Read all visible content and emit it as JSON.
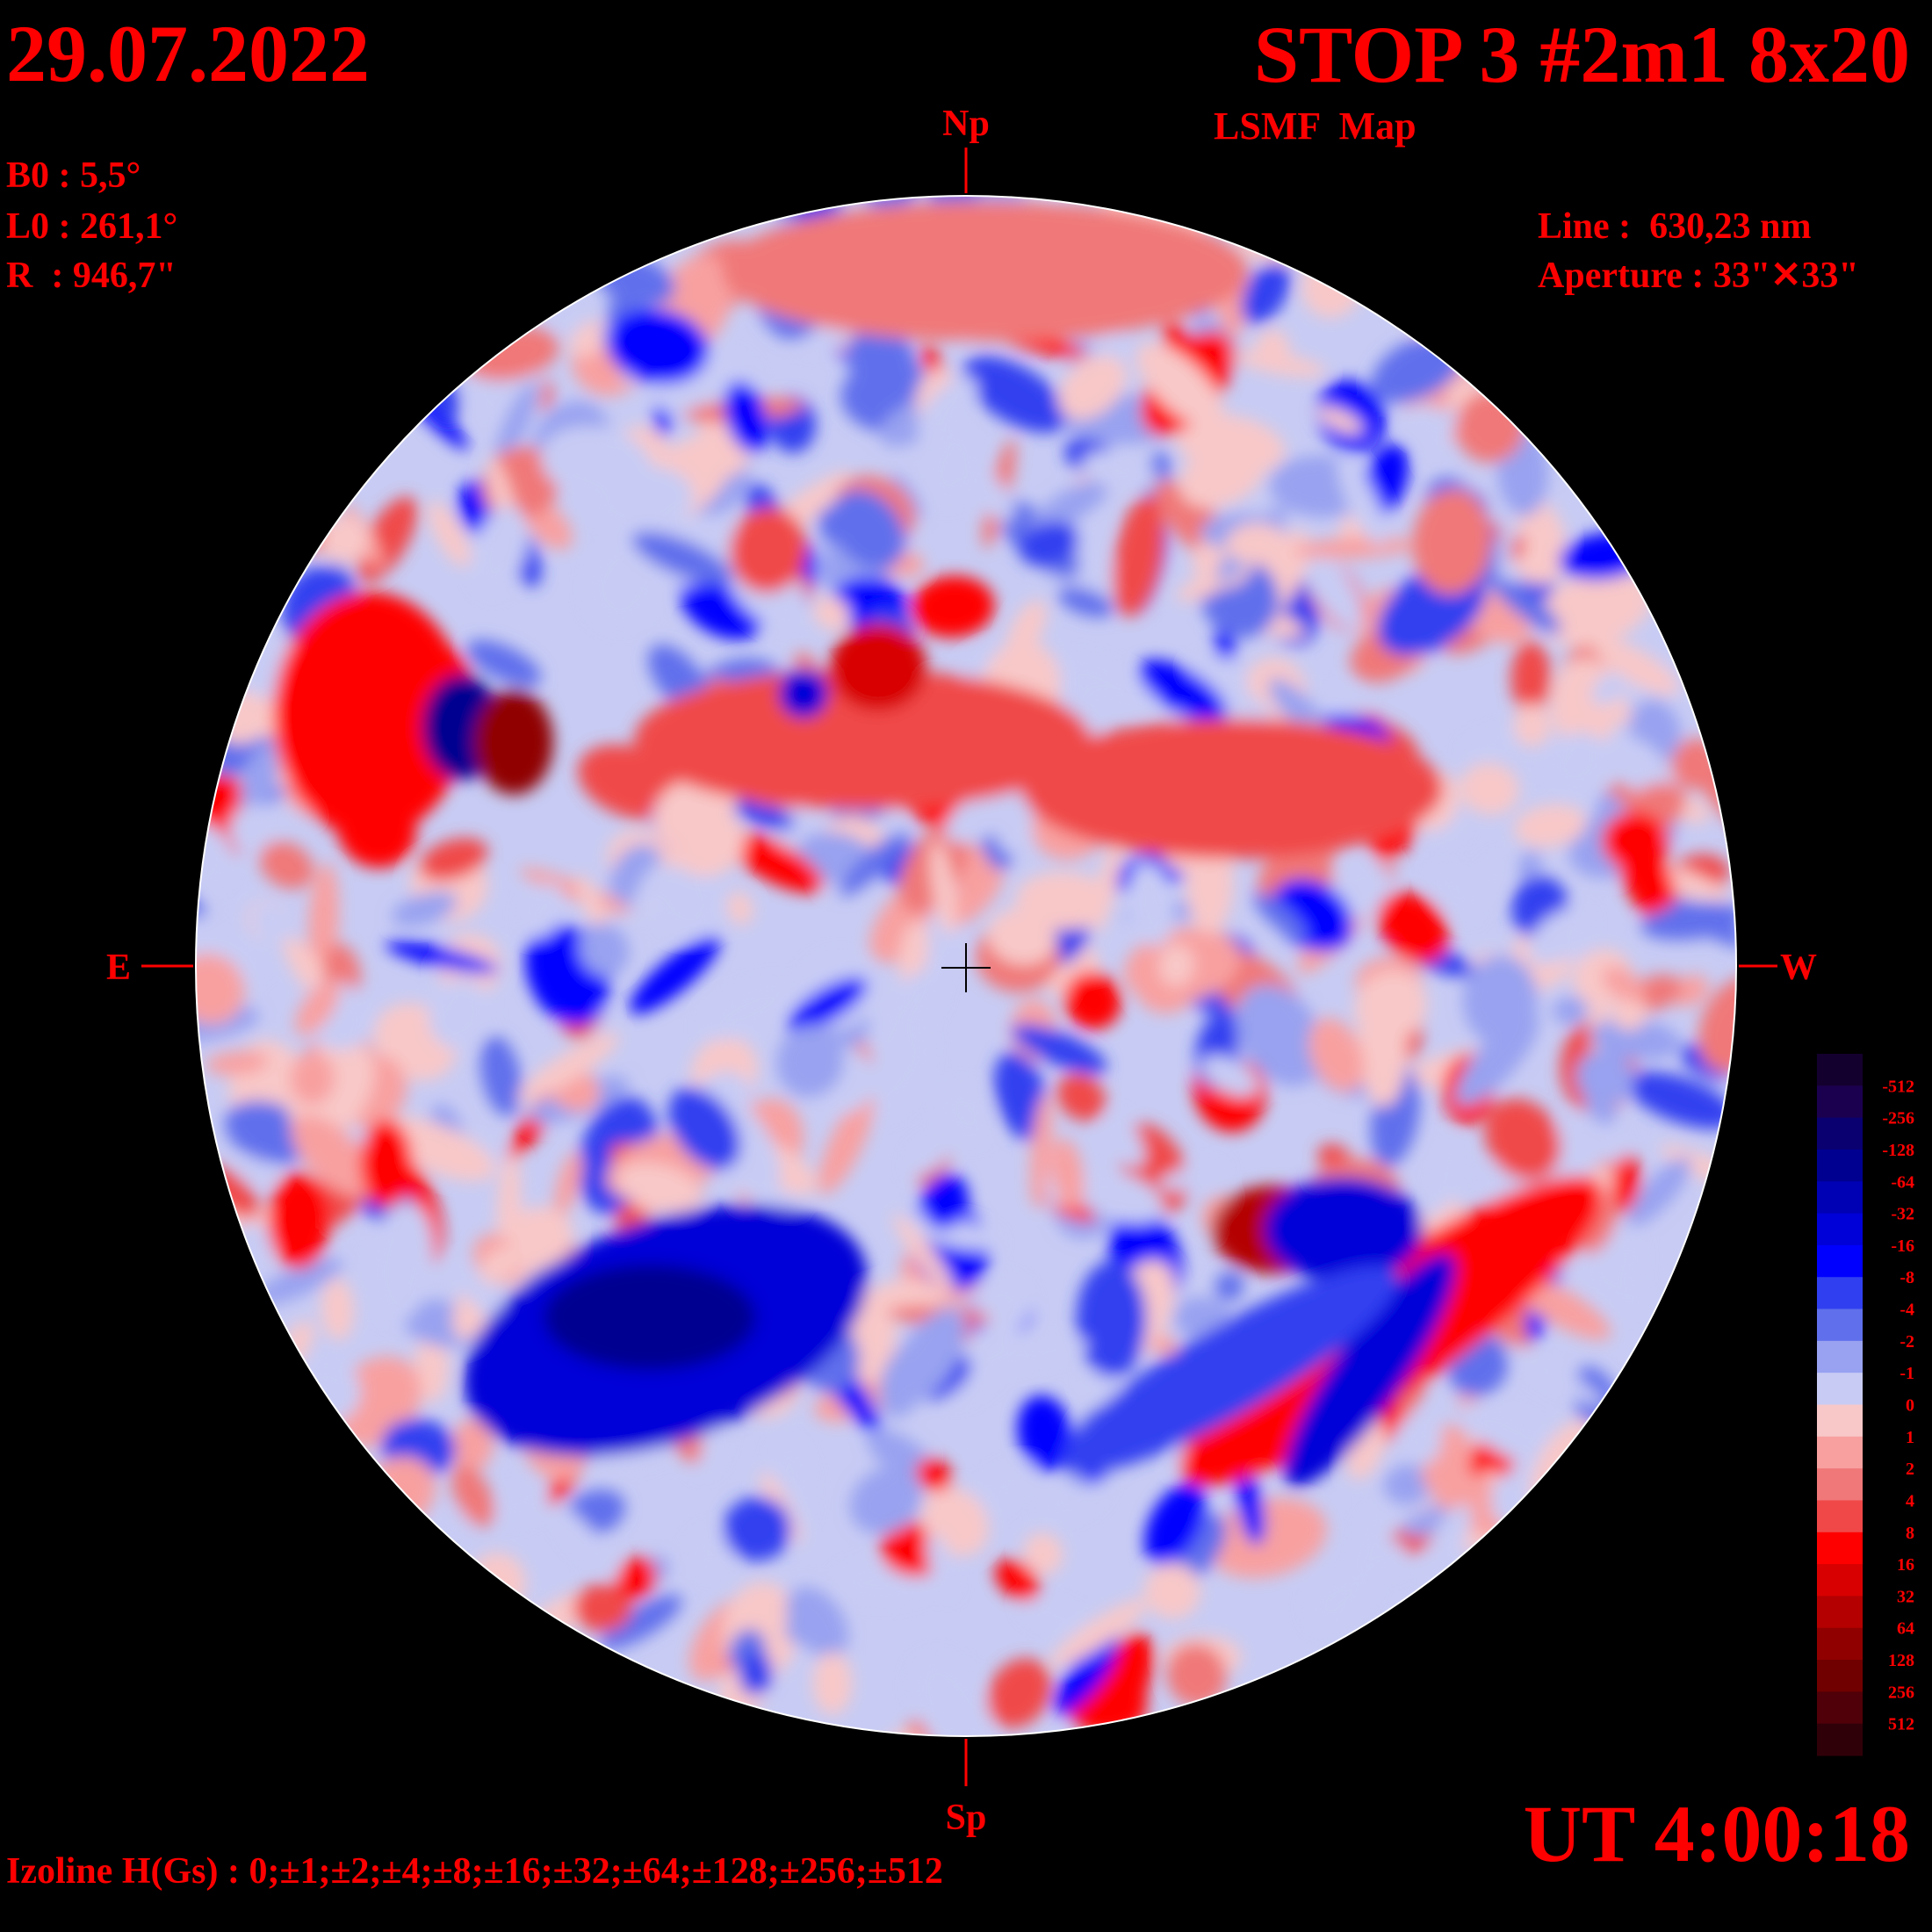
{
  "header": {
    "date": "29.07.2022",
    "title": "STOP 3 #2m1 8x20",
    "subtitle": "LSMF  Map"
  },
  "parameters": {
    "b0": "B0 : 5,5°",
    "l0": "L0 : 261,1°",
    "r": "R  : 946,7\"",
    "line": "Line :  630,23 nm",
    "aperture": "Aperture : 33\"✕33\""
  },
  "directions": {
    "north": "Np",
    "south": "Sp",
    "east": "E",
    "west": "W"
  },
  "colorbar": {
    "labels": [
      -512,
      -256,
      -128,
      -64,
      -32,
      -16,
      -8,
      -4,
      -2,
      -1,
      0,
      1,
      2,
      4,
      8,
      16,
      32,
      64,
      128,
      256,
      512
    ],
    "colors": [
      "#14002e",
      "#1c0050",
      "#0a0070",
      "#000090",
      "#0000b4",
      "#0000d8",
      "#0000ff",
      "#3040f0",
      "#6070ec",
      "#98a2f0",
      "#c8ccf4",
      "#f8c8c8",
      "#f8a0a0",
      "#f07878",
      "#f04848",
      "#ff0000",
      "#d80000",
      "#b40000",
      "#900000",
      "#700000",
      "#500008",
      "#300008"
    ]
  },
  "footer": {
    "isolines": "Izoline H(Gs) : 0;±1;±2;±4;±8;±16;±32;±64;±128;±256;±512",
    "time": "UT 4:00:18"
  }
}
